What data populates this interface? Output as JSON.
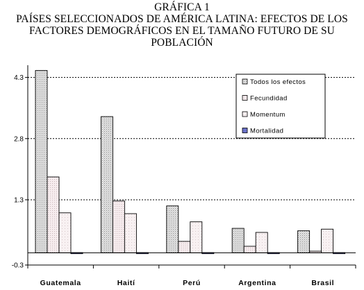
{
  "title_lines": [
    "GRÁFICA 1",
    "PAÍSES SELECCIONADOS DE AMÉRICA LATINA: EFECTOS DE LOS",
    "FACTORES DEMOGRÁFICOS EN EL TAMAÑO FUTURO DE SU",
    "POBLACIÓN"
  ],
  "chart_data": {
    "type": "bar",
    "categories": [
      "Guatemala",
      "Haití",
      "Perú",
      "Argentina",
      "Brasil"
    ],
    "series": [
      {
        "name": "Todos los efectos",
        "values": [
          4.47,
          3.34,
          1.15,
          0.6,
          0.54
        ]
      },
      {
        "name": "Fecundidad",
        "values": [
          1.86,
          1.27,
          0.28,
          0.16,
          0.04
        ]
      },
      {
        "name": "Momentum",
        "values": [
          0.98,
          0.96,
          0.76,
          0.5,
          0.58
        ]
      },
      {
        "name": "Mortalidad",
        "values": [
          -0.02,
          0.0,
          -0.01,
          -0.02,
          -0.02
        ]
      }
    ],
    "yticks": [
      -0.3,
      1.3,
      2.8,
      4.3
    ],
    "ytick_labels": [
      "-0.3",
      "1.3",
      "2.8",
      "4.3"
    ],
    "ylim": [
      -0.3,
      4.6
    ],
    "grid": "horizontal dotted",
    "legend_position": "top-right",
    "colors": {
      "todos": "#d8d8d8",
      "fecundidad": "#f4e8ea",
      "momentum": "#f7eef0",
      "mortalidad": "#6b72c9",
      "pattern_dot": "#9a9a9a"
    }
  }
}
